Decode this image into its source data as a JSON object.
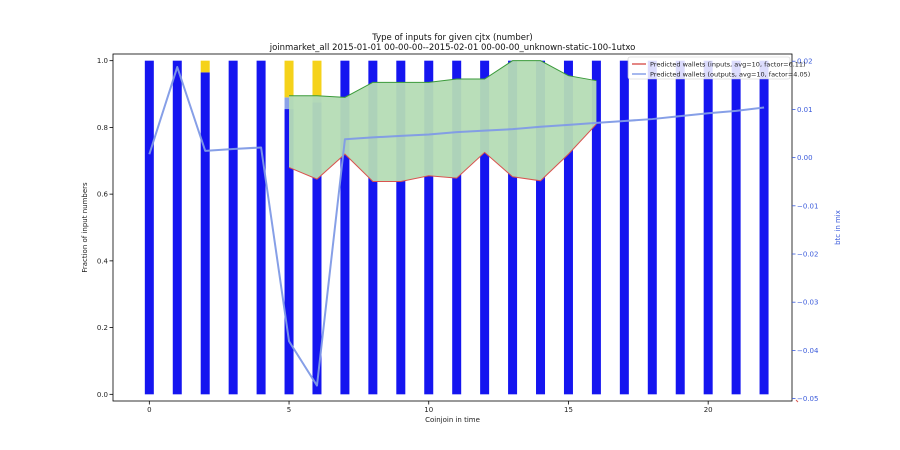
{
  "chart_data": {
    "type": "bar",
    "title": "Type of inputs for given cjtx (number)",
    "subtitle": "joinmarket_all 2015-01-01 00-00-00--2015-02-01 00-00-00_unknown-static-100-1utxo",
    "xlabel": "Coinjoin in time",
    "ylabel": "Fraction of input numbers",
    "ylabel_right": "btc in mix",
    "xlim": [
      -1.3,
      23.0
    ],
    "ylim": [
      -0.02,
      1.02
    ],
    "ylim_right": [
      -0.0505,
      0.0215
    ],
    "x_ticks": [
      "0",
      "5",
      "10",
      "15",
      "20"
    ],
    "y_ticks": [
      "0.0",
      "0.2",
      "0.4",
      "0.6",
      "0.8",
      "1.0"
    ],
    "y_ticks_right": [
      "0.02",
      "0.01",
      "0.00",
      "−0.01",
      "−0.02",
      "−0.03",
      "−0.04",
      "−0.05"
    ],
    "x": [
      0,
      1,
      2,
      3,
      4,
      5,
      6,
      7,
      8,
      9,
      10,
      11,
      12,
      13,
      14,
      15,
      16,
      17,
      18,
      19,
      20,
      21,
      22
    ],
    "bar_series": [
      {
        "key": "blue",
        "color": "#1515f0",
        "values": [
          1,
          1,
          0.965,
          1,
          1,
          0.855,
          0.875,
          1,
          1,
          1,
          1,
          1,
          1,
          1,
          1,
          1,
          1,
          1,
          1,
          1,
          1,
          1,
          1
        ]
      },
      {
        "key": "light-blue",
        "color": "#8aa2e8",
        "values": [
          0,
          0,
          0,
          0,
          0,
          0.035,
          0.015,
          0,
          0,
          0,
          0,
          0,
          0,
          0,
          0,
          0,
          0,
          0,
          0,
          0,
          0,
          0,
          0
        ]
      },
      {
        "key": "yellow",
        "color": "#f5d21a",
        "values": [
          0,
          0,
          0.035,
          0,
          0,
          0.11,
          0.11,
          0,
          0,
          0,
          0,
          0,
          0,
          0,
          0,
          0,
          0,
          0,
          0,
          0,
          0,
          0,
          0
        ]
      }
    ],
    "band": {
      "fill": "#b5dcb5",
      "x": [
        5,
        6,
        7,
        8,
        9,
        10,
        11,
        12,
        13,
        14,
        15,
        16
      ],
      "lower": [
        0.68,
        0.645,
        0.72,
        0.638,
        0.638,
        0.655,
        0.648,
        0.725,
        0.652,
        0.64,
        0.72,
        0.81
      ],
      "upper": [
        0.895,
        0.895,
        0.89,
        0.935,
        0.935,
        0.935,
        0.945,
        0.945,
        1.0,
        1.0,
        0.955,
        0.94
      ],
      "lower_color": "#d9534f",
      "upper_color": "#3a9a3a"
    },
    "line": {
      "color": "#7f9ae6",
      "x": [
        0,
        1,
        2,
        3,
        4,
        5,
        6,
        7,
        8,
        9,
        10,
        11,
        12,
        13,
        14,
        15,
        16,
        17,
        18,
        19,
        20,
        21,
        22
      ],
      "values": [
        0.0007,
        0.0188,
        0.0014,
        0.0018,
        0.0021,
        -0.0381,
        -0.0473,
        0.0038,
        0.0042,
        0.0045,
        0.0048,
        0.0053,
        0.0056,
        0.0059,
        0.0064,
        0.0068,
        0.0072,
        0.0076,
        0.008,
        0.0086,
        0.0092,
        0.0097,
        0.0104
      ]
    },
    "legend_position": "top-right",
    "legend": [
      {
        "label": "Predicted wallets (inputs, avg=10, factor=6.11)",
        "color": "#d9534f"
      },
      {
        "label": "Predicted wallets (outputs, avg=10, factor=4.05)",
        "color": "#7f9ae6"
      }
    ]
  }
}
